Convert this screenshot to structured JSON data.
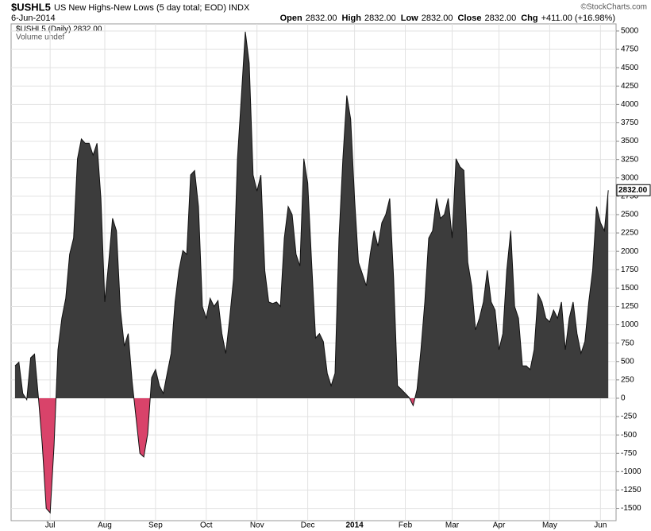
{
  "chart_data": {
    "type": "area",
    "symbol": "$USHL5",
    "title": "US New Highs-New Lows (5 day total; EOD)",
    "exchange": "INDX",
    "copyright": "©StockCharts.com",
    "date": "6-Jun-2014",
    "quote": [
      {
        "label": "Open",
        "value": "2832.00"
      },
      {
        "label": "High",
        "value": "2832.00"
      },
      {
        "label": "Low",
        "value": "2832.00"
      },
      {
        "label": "Close",
        "value": "2832.00"
      },
      {
        "label": "Chg",
        "value": "+411.00 (+16.98%)"
      }
    ],
    "legend": [
      "$USHL5 (Daily) 2832.00",
      "Volume undef"
    ],
    "last_label": "2832.00",
    "positive_color": "#3c3c3c",
    "negative_color": "#d9436a",
    "values": [
      440,
      490,
      65,
      -20,
      550,
      600,
      10,
      -640,
      -1500,
      -1560,
      -640,
      660,
      1090,
      1360,
      1960,
      2180,
      3260,
      3530,
      3470,
      3470,
      3310,
      3470,
      2720,
      1310,
      1850,
      2450,
      2280,
      1200,
      710,
      880,
      230,
      -260,
      -750,
      -800,
      -480,
      280,
      390,
      170,
      65,
      340,
      610,
      1310,
      1740,
      2010,
      1960,
      3040,
      3100,
      2610,
      1250,
      1090,
      1360,
      1250,
      1330,
      880,
      610,
      1090,
      1630,
      3260,
      4120,
      4990,
      4560,
      3040,
      2820,
      3040,
      1740,
      1310,
      1290,
      1310,
      1250,
      2180,
      2610,
      2500,
      1960,
      1800,
      3260,
      2930,
      1850,
      820,
      880,
      770,
      340,
      170,
      340,
      2180,
      3260,
      4120,
      3800,
      2720,
      1850,
      1690,
      1530,
      1960,
      2280,
      2070,
      2390,
      2500,
      2720,
      1630,
      170,
      120,
      65,
      10,
      -100,
      120,
      660,
      1310,
      2180,
      2280,
      2720,
      2450,
      2500,
      2720,
      2180,
      3260,
      3150,
      3100,
      1850,
      1530,
      930,
      1090,
      1310,
      1740,
      1310,
      1200,
      660,
      880,
      1740,
      2280,
      1250,
      1090,
      440,
      440,
      390,
      660,
      1420,
      1310,
      1090,
      1040,
      1200,
      1090,
      1310,
      660,
      1090,
      1310,
      880,
      610,
      770,
      1310,
      1740,
      2610,
      2390,
      2280,
      2832
    ],
    "xlim": [
      -1,
      154
    ],
    "xticks": [
      {
        "value": 9,
        "label": "Jul"
      },
      {
        "value": 23,
        "label": "Aug"
      },
      {
        "value": 36,
        "label": "Sep"
      },
      {
        "value": 49,
        "label": "Oct"
      },
      {
        "value": 62,
        "label": "Nov"
      },
      {
        "value": 75,
        "label": "Dec"
      },
      {
        "value": 87,
        "label": "2014"
      },
      {
        "value": 100,
        "label": "Feb"
      },
      {
        "value": 112,
        "label": "Mar"
      },
      {
        "value": 124,
        "label": "Apr"
      },
      {
        "value": 137,
        "label": "May"
      },
      {
        "value": 150,
        "label": "Jun"
      }
    ],
    "ylim": [
      -1667,
      5097
    ],
    "yticks": [
      -1500,
      -1250,
      -1000,
      -750,
      -500,
      -250,
      0,
      250,
      500,
      750,
      1000,
      1250,
      1500,
      1750,
      2000,
      2250,
      2500,
      2750,
      3000,
      3250,
      3500,
      3750,
      4000,
      4250,
      4500,
      4750,
      5000
    ],
    "grid": true
  }
}
